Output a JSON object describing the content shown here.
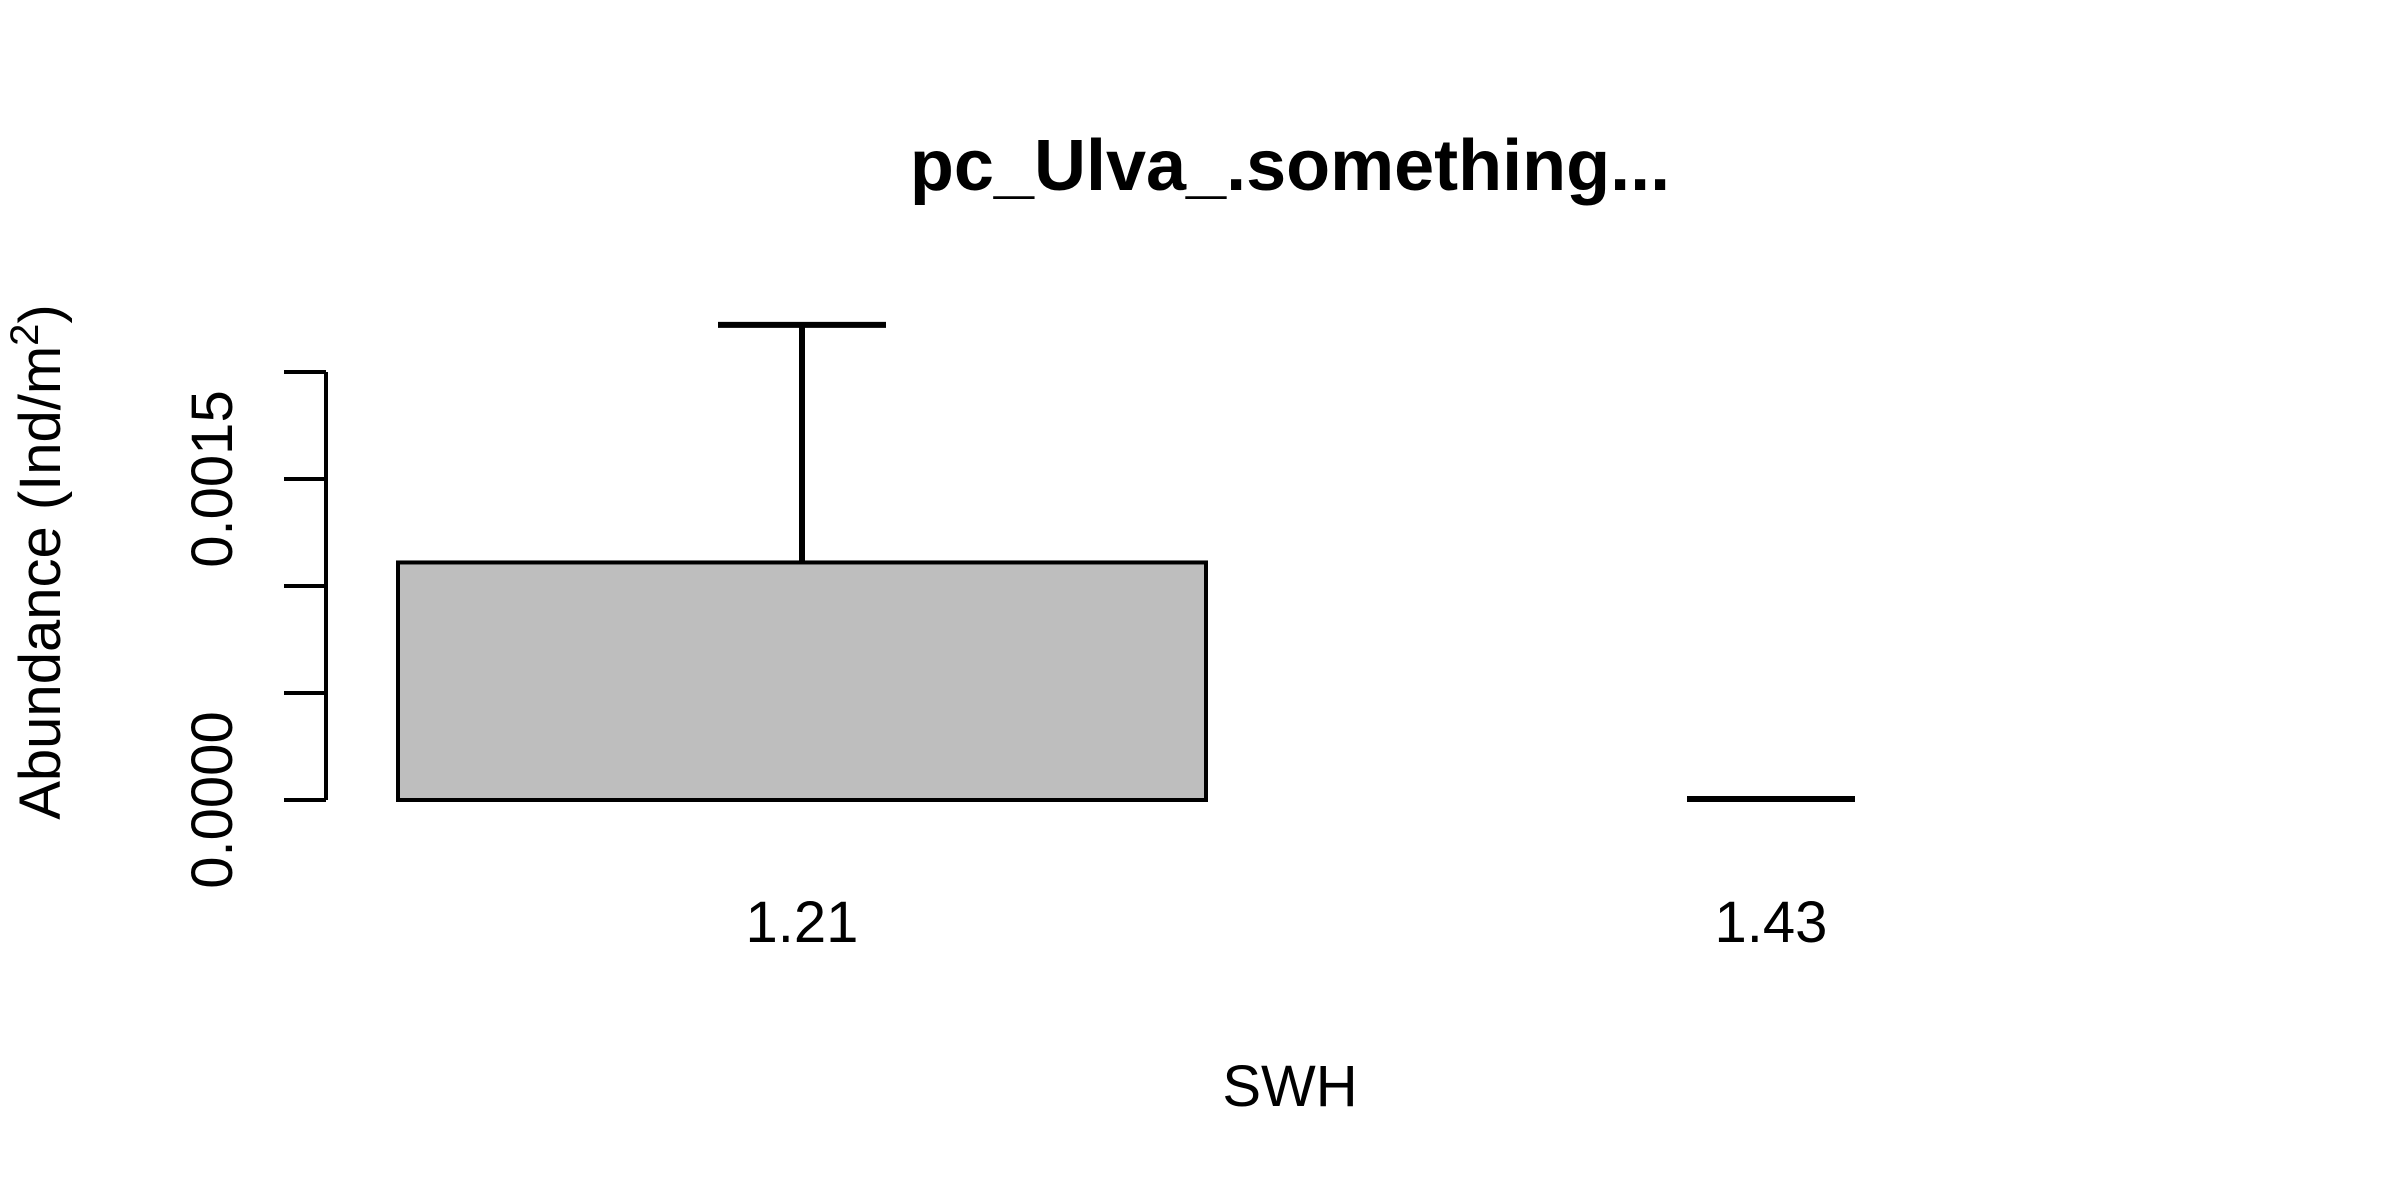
{
  "chart_data": {
    "type": "bar",
    "title": "pc_Ulva_.something...",
    "xlabel": "SWH",
    "ylabel": "Abundance (Ind/m",
    "ylabel_superscript": "2",
    "ylabel_suffix": ")",
    "categories": [
      "1.21",
      "1.43"
    ],
    "values": [
      0.00111,
      0.0
    ],
    "error_upper": [
      0.00222,
      0.0
    ],
    "ylim": [
      0,
      0.002
    ],
    "yticks": [
      0.0,
      0.0005,
      0.001,
      0.0015,
      0.002
    ],
    "ytick_labels": [
      "0.0000",
      "",
      "",
      "0.0015",
      ""
    ],
    "grid": false,
    "bar_color": "#bebebe",
    "edge_color": "#000000"
  }
}
